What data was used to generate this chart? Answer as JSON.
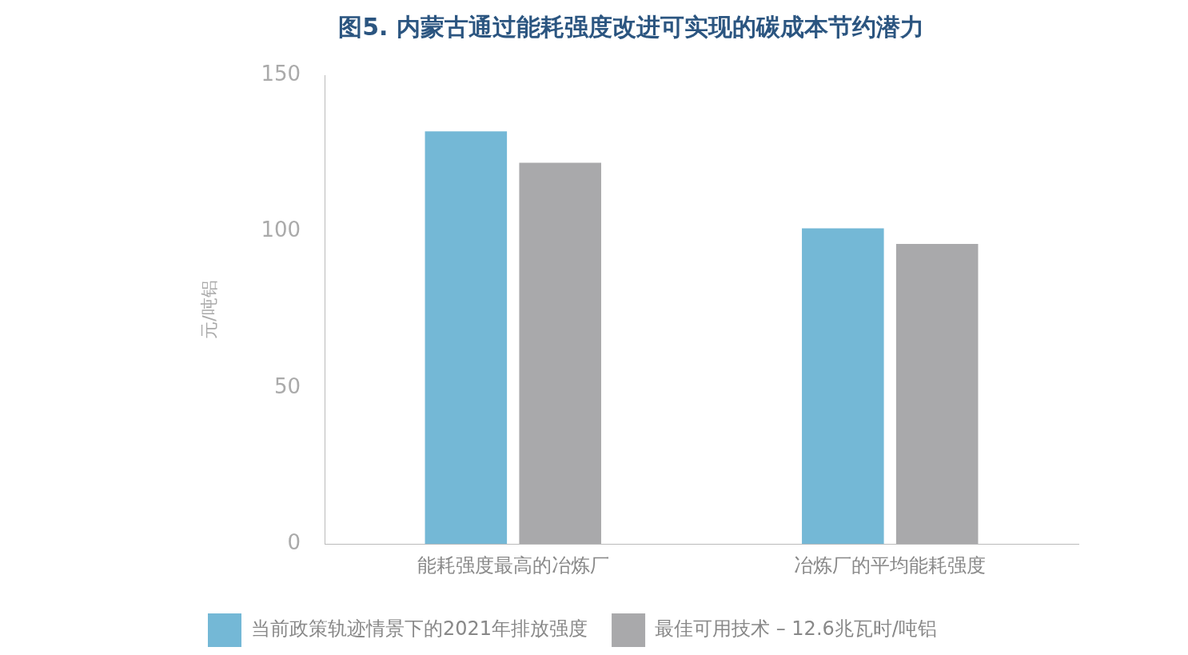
{
  "chart_data": {
    "type": "bar",
    "title": "图5. 内蒙古通过能耗强度改进可实现的碳成本节约潜力",
    "ylabel": "元/吨铝",
    "categories": [
      "能耗强度最高的冶炼厂",
      "冶炼厂的平均能耗强度"
    ],
    "series": [
      {
        "name": "当前政策轨迹情景下的2021年排放强度",
        "color": "#74b8d6",
        "values": [
          132,
          101
        ]
      },
      {
        "name": "最佳可用技术 – 12.6兆瓦时/吨铝",
        "color": "#a9a9ab",
        "values": [
          122,
          96
        ]
      }
    ],
    "ylim": [
      0,
      150
    ],
    "yticks": [
      0,
      50,
      100,
      150
    ],
    "grid": false,
    "legend": "bottom"
  }
}
